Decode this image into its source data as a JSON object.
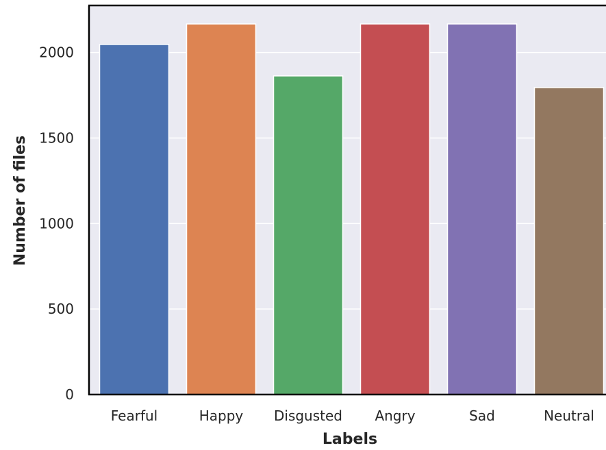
{
  "chart_data": {
    "type": "bar",
    "title": "",
    "xlabel": "Labels",
    "ylabel": "Number of files",
    "categories": [
      "Fearful",
      "Happy",
      "Disgusted",
      "Angry",
      "Sad",
      "Neutral"
    ],
    "values": [
      2047,
      2167,
      1863,
      2167,
      2167,
      1795
    ],
    "ylim": [
      0,
      2275
    ],
    "yticks": [
      0,
      500,
      1000,
      1500,
      2000
    ],
    "grid": true,
    "legend": "none",
    "colors": [
      "#4c72b0",
      "#dd8452",
      "#55a868",
      "#c44e52",
      "#8172b3",
      "#937860"
    ],
    "background": "#eaeaf2"
  }
}
